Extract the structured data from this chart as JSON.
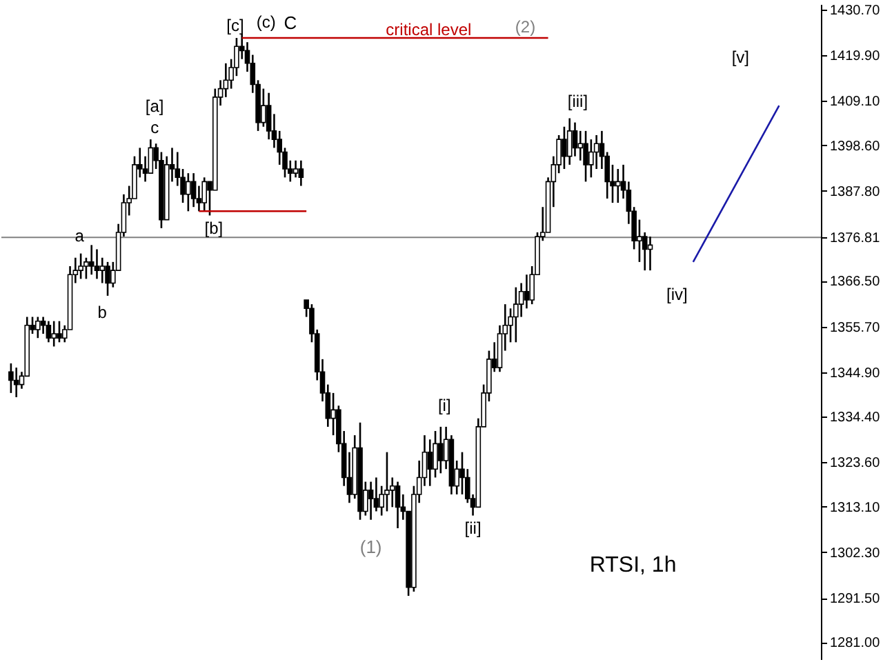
{
  "chart_data": {
    "type": "candlestick",
    "categories": [
      null,
      null,
      null,
      null,
      null,
      null,
      null,
      null,
      null,
      null,
      null,
      null,
      null,
      null,
      null,
      null,
      null,
      null,
      null,
      null,
      null,
      null,
      null,
      null,
      null,
      null,
      null,
      null,
      null,
      null,
      null,
      null,
      null,
      null,
      null,
      null,
      null,
      null,
      null,
      null,
      null,
      null,
      null,
      null,
      null,
      null,
      null,
      null,
      null,
      null,
      null,
      null,
      null,
      null,
      null,
      null,
      null,
      null,
      null,
      null,
      null,
      null,
      null,
      null,
      null,
      null,
      null,
      null,
      null,
      null,
      null,
      null,
      null,
      null,
      null,
      null,
      null,
      null,
      null,
      null,
      null,
      null,
      null,
      null,
      null,
      null,
      null,
      null,
      null,
      null,
      null,
      null,
      null,
      null,
      null,
      null,
      null,
      null,
      null,
      null,
      null,
      null,
      null,
      null,
      null,
      null,
      null,
      null,
      null,
      null,
      null,
      null,
      null,
      null,
      null,
      null,
      null,
      null,
      null,
      null,
      null,
      null,
      null,
      null,
      null,
      null,
      null,
      null,
      null,
      null,
      null,
      null,
      null,
      null,
      null,
      null,
      null,
      null,
      null,
      null,
      null,
      null,
      null,
      null,
      null,
      null,
      null,
      null,
      null,
      null
    ],
    "ohlc": [
      [
        1345,
        1347,
        1340,
        1343
      ],
      [
        1343,
        1346,
        1339,
        1342
      ],
      [
        1342,
        1345,
        1341,
        1344
      ],
      [
        1344,
        1358,
        1344,
        1356
      ],
      [
        1356,
        1358,
        1354,
        1355
      ],
      [
        1355,
        1358,
        1353,
        1357
      ],
      [
        1357,
        1358,
        1354,
        1356
      ],
      [
        1356,
        1357,
        1352,
        1353
      ],
      [
        1353,
        1357,
        1351,
        1354
      ],
      [
        1354,
        1357,
        1352,
        1353
      ],
      [
        1353,
        1356,
        1352,
        1355
      ],
      [
        1355,
        1370,
        1355,
        1368
      ],
      [
        1368,
        1372,
        1366,
        1369
      ],
      [
        1369,
        1373,
        1367,
        1370
      ],
      [
        1370,
        1372,
        1367,
        1371
      ],
      [
        1371,
        1375,
        1368,
        1370
      ],
      [
        1370,
        1374,
        1367,
        1369
      ],
      [
        1369,
        1372,
        1366,
        1370
      ],
      [
        1370,
        1371,
        1363,
        1366
      ],
      [
        1366,
        1371,
        1365,
        1369
      ],
      [
        1369,
        1380,
        1369,
        1378
      ],
      [
        1378,
        1387,
        1377,
        1385
      ],
      [
        1385,
        1389,
        1382,
        1386
      ],
      [
        1386,
        1396,
        1386,
        1394
      ],
      [
        1394,
        1398,
        1391,
        1393
      ],
      [
        1393,
        1396,
        1390,
        1392
      ],
      [
        1392,
        1400,
        1392,
        1398
      ],
      [
        1398,
        1399,
        1393,
        1395
      ],
      [
        1395,
        1397,
        1379,
        1381
      ],
      [
        1381,
        1396,
        1381,
        1394
      ],
      [
        1394,
        1398,
        1390,
        1393
      ],
      [
        1393,
        1397,
        1389,
        1391
      ],
      [
        1391,
        1393,
        1385,
        1387
      ],
      [
        1387,
        1392,
        1383,
        1390
      ],
      [
        1390,
        1392,
        1384,
        1386
      ],
      [
        1386,
        1389,
        1383,
        1385
      ],
      [
        1385,
        1391,
        1383,
        1390
      ],
      [
        1390,
        1390,
        1382,
        1388
      ],
      [
        1388,
        1412,
        1388,
        1410
      ],
      [
        1410,
        1414,
        1408,
        1412
      ],
      [
        1412,
        1418,
        1410,
        1414
      ],
      [
        1414,
        1419,
        1412,
        1417
      ],
      [
        1417,
        1424,
        1415,
        1422
      ],
      [
        1422,
        1425,
        1419,
        1421
      ],
      [
        1421,
        1423,
        1416,
        1418
      ],
      [
        1418,
        1420,
        1411,
        1413
      ],
      [
        1413,
        1414,
        1402,
        1404
      ],
      [
        1404,
        1412,
        1403,
        1408
      ],
      [
        1408,
        1411,
        1400,
        1402
      ],
      [
        1402,
        1406,
        1398,
        1400
      ],
      [
        1400,
        1402,
        1394,
        1397
      ],
      [
        1397,
        1398,
        1391,
        1393
      ],
      [
        1393,
        1395,
        1390,
        1392
      ],
      [
        1392,
        1395,
        1391,
        1393
      ],
      [
        1393,
        1395,
        1389,
        1391
      ],
      [
        1362,
        1362,
        1358,
        1360
      ],
      [
        1360,
        1361,
        1352,
        1354
      ],
      [
        1354,
        1355,
        1343,
        1345
      ],
      [
        1345,
        1348,
        1338,
        1340
      ],
      [
        1340,
        1342,
        1332,
        1334
      ],
      [
        1334,
        1340,
        1330,
        1336
      ],
      [
        1336,
        1337,
        1326,
        1328
      ],
      [
        1328,
        1331,
        1318,
        1320
      ],
      [
        1320,
        1326,
        1314,
        1316
      ],
      [
        1316,
        1330,
        1315,
        1327
      ],
      [
        1327,
        1333,
        1310,
        1312
      ],
      [
        1312,
        1319,
        1311,
        1317
      ],
      [
        1317,
        1319,
        1310,
        1315
      ],
      [
        1315,
        1320,
        1312,
        1313
      ],
      [
        1313,
        1318,
        1311,
        1316
      ],
      [
        1316,
        1326,
        1312,
        1317
      ],
      [
        1317,
        1320,
        1313,
        1318
      ],
      [
        1318,
        1319,
        1308,
        1313
      ],
      [
        1313,
        1316,
        1310,
        1312
      ],
      [
        1312,
        1312,
        1292,
        1294
      ],
      [
        1294,
        1318,
        1293,
        1316
      ],
      [
        1316,
        1324,
        1314,
        1320
      ],
      [
        1320,
        1330,
        1318,
        1326
      ],
      [
        1326,
        1329,
        1318,
        1322
      ],
      [
        1322,
        1331,
        1320,
        1328
      ],
      [
        1328,
        1332,
        1321,
        1324
      ],
      [
        1324,
        1332,
        1322,
        1329
      ],
      [
        1329,
        1330,
        1316,
        1318
      ],
      [
        1318,
        1324,
        1316,
        1322
      ],
      [
        1322,
        1326,
        1316,
        1320
      ],
      [
        1320,
        1322,
        1314,
        1315
      ],
      [
        1315,
        1316,
        1311,
        1313
      ],
      [
        1313,
        1334,
        1313,
        1332
      ],
      [
        1332,
        1342,
        1332,
        1340
      ],
      [
        1340,
        1350,
        1338,
        1348
      ],
      [
        1348,
        1352,
        1345,
        1346
      ],
      [
        1346,
        1356,
        1345,
        1354
      ],
      [
        1354,
        1361,
        1350,
        1356
      ],
      [
        1356,
        1360,
        1352,
        1358
      ],
      [
        1358,
        1365,
        1352,
        1361
      ],
      [
        1361,
        1366,
        1358,
        1364
      ],
      [
        1364,
        1368,
        1360,
        1362
      ],
      [
        1362,
        1370,
        1361,
        1368
      ],
      [
        1368,
        1378,
        1368,
        1377
      ],
      [
        1377,
        1384,
        1376,
        1378
      ],
      [
        1378,
        1391,
        1378,
        1390
      ],
      [
        1390,
        1396,
        1384,
        1394
      ],
      [
        1394,
        1401,
        1392,
        1400
      ],
      [
        1400,
        1403,
        1393,
        1396
      ],
      [
        1396,
        1405,
        1394,
        1402
      ],
      [
        1402,
        1404,
        1396,
        1398
      ],
      [
        1398,
        1402,
        1395,
        1399
      ],
      [
        1399,
        1402,
        1390,
        1394
      ],
      [
        1394,
        1400,
        1391,
        1397
      ],
      [
        1397,
        1401,
        1393,
        1399
      ],
      [
        1399,
        1402,
        1393,
        1396
      ],
      [
        1396,
        1397,
        1386,
        1390
      ],
      [
        1390,
        1394,
        1385,
        1389
      ],
      [
        1389,
        1393,
        1385,
        1390
      ],
      [
        1390,
        1394,
        1386,
        1388
      ],
      [
        1388,
        1390,
        1380,
        1383
      ],
      [
        1383,
        1384,
        1374,
        1376
      ],
      [
        1376,
        1381,
        1371,
        1377
      ],
      [
        1377,
        1378,
        1369,
        1374
      ],
      [
        1374,
        1377,
        1369,
        1375
      ],
      null,
      null,
      null,
      null,
      null,
      null,
      null,
      null,
      null,
      null,
      null,
      null,
      null,
      null,
      null,
      null,
      null,
      null,
      null,
      null,
      null,
      null,
      null,
      null,
      null,
      null,
      null,
      null,
      null,
      null
    ],
    "series": [
      {
        "type": "line",
        "color": "#1a1aa8",
        "values": [
          null,
          null,
          null,
          null,
          null,
          null,
          null,
          null,
          null,
          null,
          null,
          null,
          null,
          null,
          null,
          null,
          null,
          null,
          null,
          null,
          null,
          null,
          null,
          null,
          null,
          null,
          null,
          null,
          null,
          null,
          null,
          null,
          null,
          null,
          null,
          null,
          null,
          null,
          null,
          null,
          null,
          null,
          null,
          null,
          null,
          null,
          null,
          null,
          null,
          null,
          null,
          null,
          null,
          null,
          null,
          null,
          null,
          null,
          null,
          null,
          null,
          null,
          null,
          null,
          null,
          null,
          null,
          null,
          null,
          null,
          null,
          null,
          null,
          null,
          null,
          null,
          null,
          null,
          null,
          null,
          null,
          null,
          null,
          null,
          null,
          null,
          null,
          null,
          null,
          null,
          null,
          null,
          null,
          null,
          null,
          null,
          null,
          null,
          null,
          null,
          null,
          null,
          null,
          null,
          null,
          null,
          null,
          null,
          null,
          null,
          null,
          null,
          null,
          null,
          null,
          null,
          null,
          null,
          null,
          null,
          null,
          null,
          null,
          null,
          null,
          null,
          null,
          1371,
          null,
          null,
          null,
          null,
          null,
          null,
          null,
          null,
          null,
          null,
          null,
          null,
          null,
          null,
          null,
          1408,
          null,
          null,
          null,
          null,
          null,
          null
        ]
      },
      {
        "type": "line",
        "color": "#c00000",
        "values": [
          null,
          null,
          null,
          null,
          null,
          null,
          null,
          null,
          null,
          null,
          null,
          null,
          null,
          null,
          null,
          null,
          null,
          null,
          null,
          null,
          null,
          null,
          null,
          null,
          null,
          null,
          null,
          null,
          null,
          null,
          null,
          null,
          null,
          null,
          null,
          null,
          null,
          null,
          null,
          null,
          null,
          null,
          null,
          1424,
          null,
          null,
          null,
          null,
          null,
          null,
          null,
          null,
          null,
          null,
          null,
          null,
          null,
          null,
          null,
          null,
          null,
          null,
          null,
          null,
          null,
          null,
          null,
          null,
          null,
          null,
          null,
          null,
          null,
          null,
          null,
          null,
          null,
          null,
          null,
          null,
          null,
          null,
          null,
          null,
          null,
          null,
          null,
          null,
          null,
          null,
          null,
          null,
          null,
          null,
          null,
          null,
          null,
          null,
          null,
          null,
          1424,
          null,
          null,
          null,
          null,
          null,
          null,
          null,
          null,
          null,
          null,
          null,
          null,
          null,
          null,
          null,
          null,
          null,
          null,
          null,
          null,
          null,
          null,
          null,
          null,
          null,
          null,
          null,
          null,
          null,
          null,
          null,
          null,
          null,
          null,
          null,
          null,
          null,
          null,
          null,
          null,
          null,
          null,
          null,
          null,
          null,
          null,
          null,
          null,
          null
        ]
      },
      {
        "type": "line",
        "color": "#c00000",
        "values": [
          null,
          null,
          null,
          null,
          null,
          null,
          null,
          null,
          null,
          null,
          null,
          null,
          null,
          null,
          null,
          null,
          null,
          null,
          null,
          null,
          null,
          null,
          null,
          null,
          null,
          null,
          null,
          null,
          null,
          null,
          null,
          null,
          null,
          null,
          null,
          1383,
          null,
          null,
          null,
          null,
          null,
          null,
          null,
          null,
          null,
          null,
          null,
          null,
          null,
          null,
          null,
          null,
          null,
          null,
          null,
          1383,
          null,
          null,
          null,
          null,
          null,
          null,
          null,
          null,
          null,
          null,
          null,
          null,
          null,
          null,
          null,
          null,
          null,
          null,
          null,
          null,
          null,
          null,
          null,
          null,
          null,
          null,
          null,
          null,
          null,
          null,
          null,
          null,
          null,
          null,
          null,
          null,
          null,
          null,
          null,
          null,
          null,
          null,
          null,
          null,
          null,
          null,
          null,
          null,
          null,
          null,
          null,
          null,
          null,
          null,
          null,
          null,
          null,
          null,
          null,
          null,
          null,
          null,
          null,
          null,
          null,
          null,
          null,
          null,
          null,
          null,
          null,
          null,
          null,
          null,
          null,
          null,
          null,
          null,
          null,
          null,
          null,
          null,
          null,
          null,
          null,
          null,
          null,
          null,
          null,
          null,
          null,
          null,
          null,
          null
        ]
      }
    ],
    "ylim": [
      1277,
      1432
    ],
    "yticks": [
      {
        "value": 1281,
        "label": "1281.00"
      },
      {
        "value": 1291.5,
        "label": "1291.50"
      },
      {
        "value": 1302.3,
        "label": "1302.30"
      },
      {
        "value": 1313.1,
        "label": "1313.10"
      },
      {
        "value": 1323.6,
        "label": "1323.60"
      },
      {
        "value": 1334.4,
        "label": "1334.40"
      },
      {
        "value": 1344.9,
        "label": "1344.90"
      },
      {
        "value": 1355.7,
        "label": "1355.70"
      },
      {
        "value": 1366.5,
        "label": "1366.50"
      },
      {
        "value": 1376.81,
        "label": "1376.81"
      },
      {
        "value": 1387.8,
        "label": "1387.80"
      },
      {
        "value": 1398.6,
        "label": "1398.60"
      },
      {
        "value": 1409.1,
        "label": "1409.10"
      },
      {
        "value": 1419.9,
        "label": "1419.90"
      },
      {
        "value": 1430.7,
        "label": "1430.70"
      }
    ],
    "ref_lines": [
      {
        "axis": "y",
        "value": 1376.81,
        "color": "#808080"
      }
    ],
    "annotations": [
      "a",
      "b",
      "c",
      "[a]",
      "[b]",
      "[c]",
      "(c)",
      "C",
      "critical level",
      "(2)",
      "[i]",
      "[ii]",
      "(1)",
      "[iii]",
      "[iv]",
      "[v]",
      "RTSI, 1h"
    ]
  }
}
